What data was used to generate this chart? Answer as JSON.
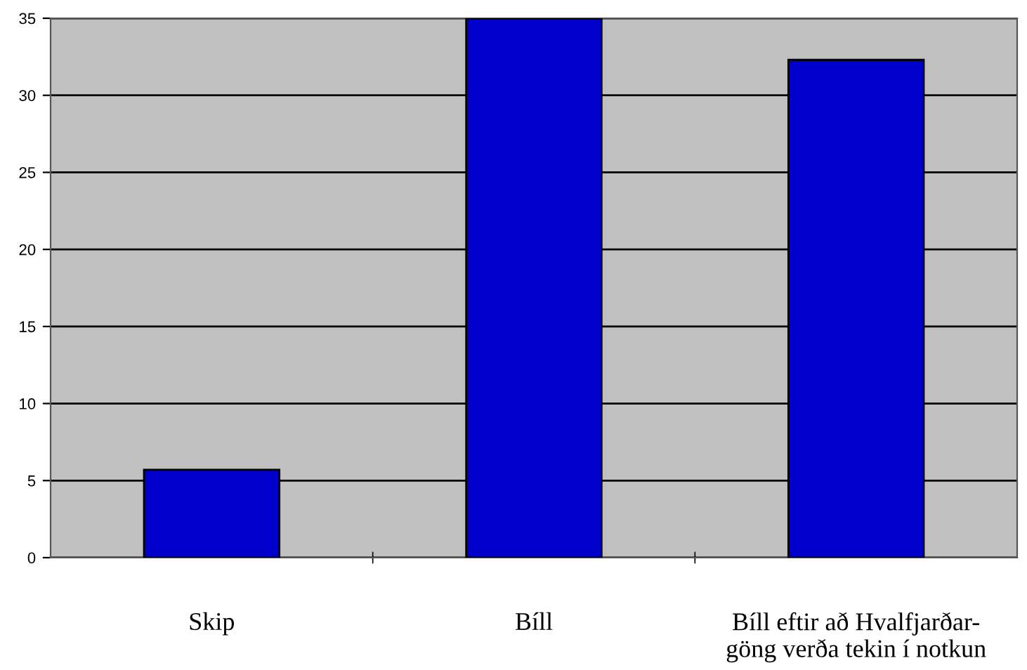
{
  "chart_data": {
    "type": "bar",
    "categories": [
      "Skip",
      "Bíll",
      "Bíll eftir að Hvalfjarðar-\ngöng verða tekin í notkun"
    ],
    "values": [
      5.7,
      35,
      32.3
    ],
    "color": "#0000cc",
    "ylim": [
      0,
      35
    ],
    "yticks": [
      0,
      5,
      10,
      15,
      20,
      25,
      30,
      35
    ],
    "grid": "y",
    "legend": false
  }
}
